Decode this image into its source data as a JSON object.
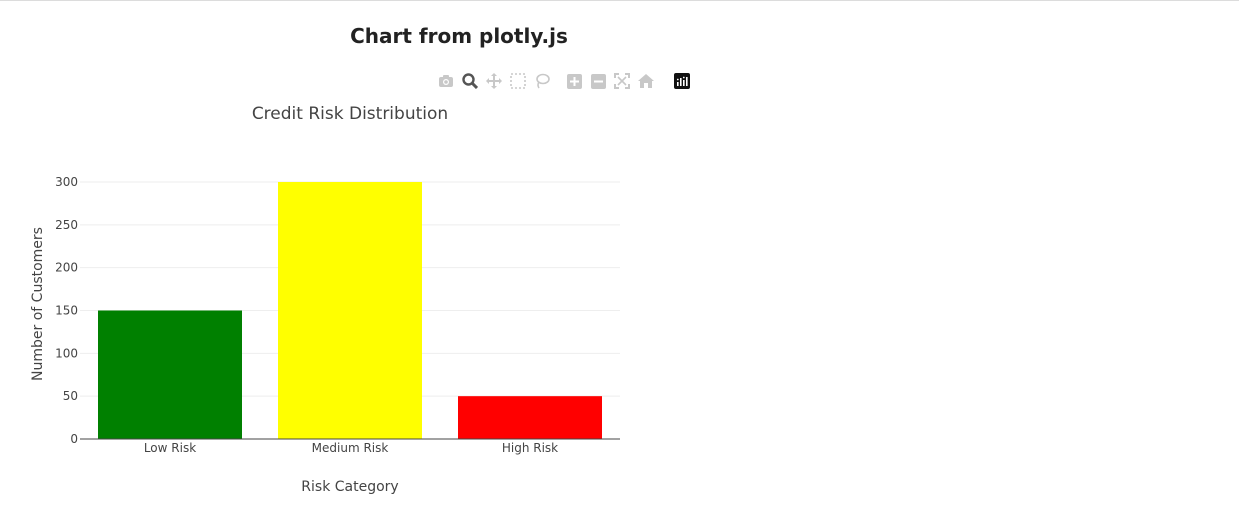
{
  "page": {
    "title": "Chart from plotly.js"
  },
  "toolbar": {
    "buttons": [
      {
        "name": "camera-icon",
        "label": "Download plot as a png"
      },
      {
        "name": "zoom-icon",
        "label": "Zoom"
      },
      {
        "name": "pan-icon",
        "label": "Pan"
      },
      {
        "name": "box-select-icon",
        "label": "Box Select"
      },
      {
        "name": "lasso-select-icon",
        "label": "Lasso Select"
      },
      {
        "name": "zoom-in-icon",
        "label": "Zoom in"
      },
      {
        "name": "zoom-out-icon",
        "label": "Zoom out"
      },
      {
        "name": "autoscale-icon",
        "label": "Autoscale"
      },
      {
        "name": "home-icon",
        "label": "Reset axes"
      },
      {
        "name": "plotly-logo-icon",
        "label": "Produced with Plotly"
      }
    ]
  },
  "chart_data": {
    "type": "bar",
    "title": "Credit Risk Distribution",
    "xlabel": "Risk Category",
    "ylabel": "Number of Customers",
    "categories": [
      "Low Risk",
      "Medium Risk",
      "High Risk"
    ],
    "values": [
      150,
      300,
      50
    ],
    "colors": [
      "#008000",
      "#ffff00",
      "#ff0000"
    ],
    "ylim": [
      0,
      300
    ],
    "yticks": [
      0,
      50,
      100,
      150,
      200,
      250,
      300
    ],
    "grid": true,
    "legend": "none"
  }
}
